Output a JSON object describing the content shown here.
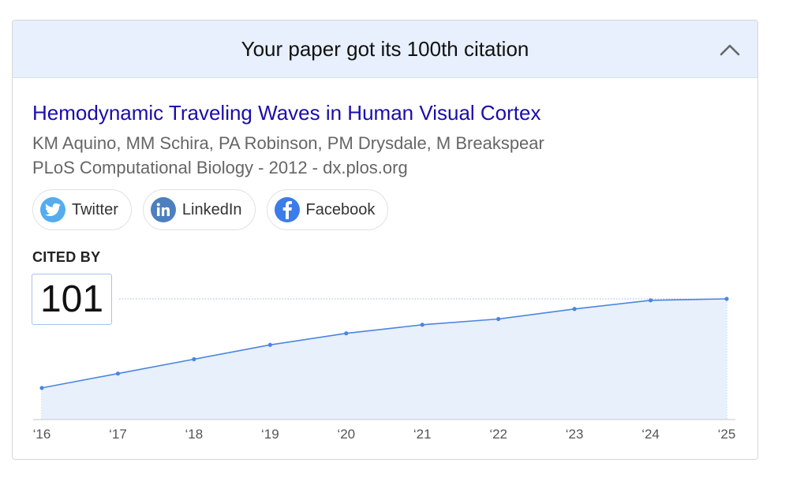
{
  "header": {
    "title": "Your paper got its 100th citation"
  },
  "paper": {
    "title": "Hemodynamic Traveling Waves in Human Visual Cortex",
    "authors": "KM Aquino, MM Schira, PA Robinson, PM Drysdale, M Breakspear",
    "venue": "PLoS Computational Biology - 2012 - dx.plos.org"
  },
  "share": [
    {
      "label": "Twitter",
      "icon": "twitter-icon",
      "color": "#55acee"
    },
    {
      "label": "LinkedIn",
      "icon": "linkedin-icon",
      "color": "#4d7fbf"
    },
    {
      "label": "Facebook",
      "icon": "facebook-icon",
      "color": "#3b7ce8"
    }
  ],
  "cited": {
    "label": "CITED BY",
    "count": "101"
  },
  "colors": {
    "line": "#4a86e0",
    "fill": "#e8f0fc",
    "link": "#1a0dab"
  },
  "chart_data": {
    "type": "area",
    "x": [
      "‘16",
      "‘17",
      "‘18",
      "‘19",
      "‘20",
      "‘21",
      "‘22",
      "‘23",
      "‘24",
      "‘25"
    ],
    "values": [
      22,
      32,
      42,
      52,
      60,
      66,
      70,
      77,
      83,
      84
    ],
    "ylim": [
      0,
      84
    ],
    "grid": "vertical dotted",
    "reference_line": 101
  }
}
